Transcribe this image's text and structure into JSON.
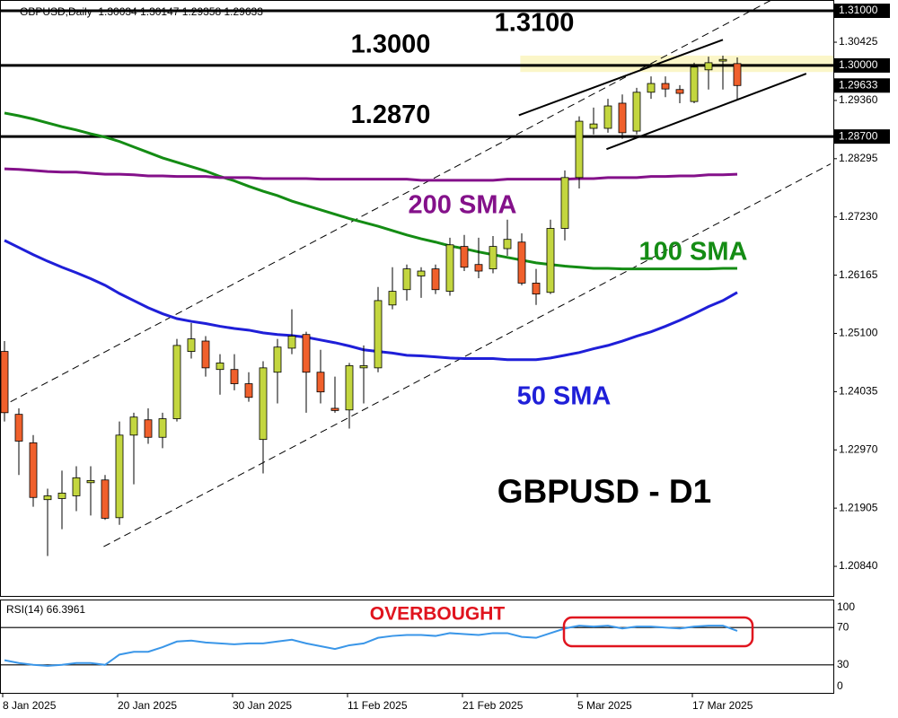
{
  "chart_data": [
    {
      "type": "candlestick",
      "title": "GBPUSD,Daily  1.30034 1.30147 1.29358 1.29633",
      "subtitle": "GBPUSD - D1",
      "categories": [
        "8 Jan 2025",
        null,
        null,
        null,
        null,
        null,
        null,
        null,
        "20 Jan 2025",
        null,
        null,
        null,
        null,
        null,
        null,
        null,
        "30 Jan 2025",
        null,
        null,
        null,
        null,
        null,
        null,
        null,
        "11 Feb 2025",
        null,
        null,
        null,
        null,
        null,
        null,
        null,
        "21 Feb 2025",
        null,
        null,
        null,
        null,
        null,
        null,
        null,
        "5 Mar 2025",
        null,
        null,
        null,
        null,
        null,
        null,
        null,
        "17 Mar 2025",
        null,
        null,
        null
      ],
      "open": [
        1.2477,
        1.2362,
        1.231,
        1.2206,
        1.2208,
        1.2213,
        1.2237,
        1.2242,
        1.2173,
        1.2324,
        1.2352,
        1.232,
        1.2354,
        1.2477,
        1.2496,
        1.2444,
        1.2444,
        1.2418,
        1.2316,
        1.2439,
        1.2483,
        1.2508,
        1.2439,
        1.2373,
        1.237,
        1.2447,
        1.2447,
        1.2562,
        1.259,
        1.2615,
        1.2628,
        1.2587,
        1.2669,
        1.2636,
        1.2628,
        1.2665,
        1.2677,
        1.2602,
        1.2585,
        1.2702,
        1.2795,
        1.2885,
        1.2885,
        1.2931,
        1.288,
        1.2951,
        1.2967,
        1.2956,
        1.2934,
        1.2992,
        1.3008,
        1.30034
      ],
      "high": [
        1.2496,
        1.2373,
        1.2324,
        1.2226,
        1.2259,
        1.2267,
        1.2267,
        1.2251,
        1.2349,
        1.2365,
        1.2373,
        1.2365,
        1.25,
        1.2529,
        1.2505,
        1.2472,
        1.2472,
        1.2439,
        1.2459,
        1.25,
        1.2554,
        1.2513,
        1.248,
        1.2431,
        1.2456,
        1.2488,
        1.2595,
        1.2631,
        1.2636,
        1.2631,
        1.2636,
        1.2685,
        1.269,
        1.2685,
        1.2688,
        1.2718,
        1.2693,
        1.2628,
        1.2718,
        1.2808,
        1.2907,
        1.2923,
        1.2939,
        1.2947,
        1.2959,
        1.298,
        1.298,
        1.2964,
        1.3005,
        1.3016,
        1.3018,
        1.30147
      ],
      "low": [
        1.2349,
        1.2251,
        1.2193,
        1.2103,
        1.2152,
        1.2185,
        1.2177,
        1.2169,
        1.216,
        1.2234,
        1.2308,
        1.23,
        1.2349,
        1.2464,
        1.2431,
        1.2398,
        1.2406,
        1.2385,
        1.2254,
        1.2382,
        1.2472,
        1.2365,
        1.2382,
        1.2365,
        1.2336,
        1.2382,
        1.2439,
        1.2554,
        1.257,
        1.2575,
        1.2582,
        1.2579,
        1.2624,
        1.2611,
        1.262,
        1.2652,
        1.2598,
        1.2562,
        1.2582,
        1.268,
        1.2775,
        1.2874,
        1.2877,
        1.2866,
        1.2874,
        1.2939,
        1.2942,
        1.2931,
        1.2931,
        1.2956,
        1.2956,
        1.29358
      ],
      "close": [
        1.2365,
        1.2313,
        1.221,
        1.2213,
        1.2218,
        1.2246,
        1.2241,
        1.2172,
        1.2324,
        1.2357,
        1.232,
        1.2354,
        1.2488,
        1.25,
        1.2447,
        1.2456,
        1.2418,
        1.2393,
        1.2447,
        1.2485,
        1.2505,
        1.2439,
        1.2403,
        1.2369,
        1.2451,
        1.2451,
        1.257,
        1.2587,
        1.2628,
        1.2624,
        1.259,
        1.2672,
        1.2631,
        1.2624,
        1.2669,
        1.2682,
        1.2602,
        1.2582,
        1.2702,
        1.2795,
        1.2898,
        1.2893,
        1.2926,
        1.2877,
        1.2951,
        1.2967,
        1.2957,
        1.2949,
        1.2997,
        1.3005,
        1.3011,
        1.29633
      ],
      "up_color": "#c3d63f",
      "down_color": "#f0602c",
      "series": [
        {
          "name": "50 SMA",
          "color": "#1f1fd8",
          "values": [
            1.268,
            1.2667,
            1.2654,
            1.2642,
            1.2631,
            1.2621,
            1.261,
            1.2598,
            1.2583,
            1.257,
            1.2557,
            1.2546,
            1.2537,
            1.2532,
            1.2528,
            1.2523,
            1.2519,
            1.2516,
            1.2511,
            1.2508,
            1.2506,
            1.2503,
            1.2498,
            1.2493,
            1.2487,
            1.248,
            1.2477,
            1.2474,
            1.247,
            1.2469,
            1.2467,
            1.2465,
            1.2464,
            1.2464,
            1.2464,
            1.2462,
            1.2462,
            1.2462,
            1.2465,
            1.247,
            1.2475,
            1.2482,
            1.2488,
            1.2496,
            1.2505,
            1.2513,
            1.2523,
            1.2534,
            1.2546,
            1.2559,
            1.257,
            1.2585
          ]
        },
        {
          "name": "100 SMA",
          "color": "#148c14",
          "values": [
            1.2913,
            1.2908,
            1.2902,
            1.2895,
            1.2888,
            1.2882,
            1.2875,
            1.2869,
            1.2861,
            1.2851,
            1.2841,
            1.2831,
            1.2823,
            1.2815,
            1.2807,
            1.2797,
            1.2789,
            1.2779,
            1.277,
            1.2762,
            1.2752,
            1.2744,
            1.2736,
            1.2728,
            1.272,
            1.2713,
            1.2706,
            1.2698,
            1.269,
            1.2683,
            1.2677,
            1.267,
            1.2665,
            1.2659,
            1.2654,
            1.2649,
            1.2644,
            1.2639,
            1.2636,
            1.2633,
            1.2631,
            1.2629,
            1.2629,
            1.2628,
            1.2628,
            1.2628,
            1.2628,
            1.2628,
            1.2628,
            1.2628,
            1.2629,
            1.2629
          ]
        },
        {
          "name": "200 SMA",
          "color": "#84118a",
          "values": [
            1.2811,
            1.281,
            1.2808,
            1.2806,
            1.2805,
            1.2805,
            1.2803,
            1.2801,
            1.2801,
            1.28,
            1.2798,
            1.2798,
            1.2797,
            1.2797,
            1.2797,
            1.2795,
            1.2795,
            1.2795,
            1.2793,
            1.2793,
            1.2793,
            1.2793,
            1.2792,
            1.2792,
            1.2792,
            1.2792,
            1.2792,
            1.2792,
            1.2792,
            1.279,
            1.279,
            1.279,
            1.279,
            1.279,
            1.279,
            1.2792,
            1.2792,
            1.2792,
            1.2792,
            1.2792,
            1.2793,
            1.2793,
            1.2795,
            1.2795,
            1.2795,
            1.2797,
            1.2797,
            1.2798,
            1.2798,
            1.28,
            1.28,
            1.2801
          ]
        }
      ],
      "levels": [
        {
          "value": 1.31,
          "label": "1.3100",
          "axis_label": "1.31000"
        },
        {
          "value": 1.3,
          "label": "1.3000",
          "axis_label": "1.30000"
        },
        {
          "value": 1.287,
          "label": "1.2870",
          "axis_label": "1.28700"
        }
      ],
      "last_price": 1.29633,
      "trendlines": [
        {
          "dashed": true,
          "points": [
            [
              -0.3,
              1.2375
            ],
            [
              53.4,
              1.312
            ]
          ]
        },
        {
          "dashed": true,
          "points": [
            [
              6.9,
              1.212
            ],
            [
              57.5,
              1.282
            ]
          ]
        },
        {
          "dashed": false,
          "points": [
            [
              35.8,
              1.2909
            ],
            [
              50,
              1.3047
            ]
          ]
        },
        {
          "dashed": false,
          "points": [
            [
              41.9,
              1.2847
            ],
            [
              55.8,
              1.2985
            ]
          ]
        }
      ],
      "highlight_zone": {
        "x": [
          35.9,
          57.7
        ],
        "y": [
          1.2988,
          1.3018
        ],
        "color": "#fbf6c8"
      },
      "ylim": [
        1.20299,
        1.31197
      ],
      "yticks": [
        1.30425,
        {
          "value": 1.2936,
          "label": "1.29360"
        },
        1.28295,
        {
          "value": 1.2723,
          "label": "1.27230"
        },
        1.26165,
        {
          "value": 1.251,
          "label": "1.25100"
        },
        1.24035,
        {
          "value": 1.2297,
          "label": "1.22970"
        },
        1.21905,
        {
          "value": 1.2084,
          "label": "1.20840"
        }
      ]
    },
    {
      "type": "line",
      "title": "RSI(14) 66.3961",
      "annotation": "OVERBOUGHT",
      "color": "#3a96e8",
      "values": [
        35,
        32,
        30,
        29,
        30,
        32,
        32,
        30,
        41,
        44,
        44,
        49,
        55,
        56,
        54,
        53,
        52,
        53,
        53,
        55,
        57,
        53,
        50,
        47,
        51,
        53,
        59,
        61,
        62,
        62,
        61,
        64,
        63,
        62,
        64,
        64,
        60,
        59,
        64,
        69,
        72,
        71,
        72,
        69,
        71,
        71,
        70,
        69,
        71,
        72,
        72,
        66.4
      ],
      "ylim": [
        0,
        100
      ],
      "yticks": [
        0,
        30,
        70,
        100
      ]
    }
  ]
}
